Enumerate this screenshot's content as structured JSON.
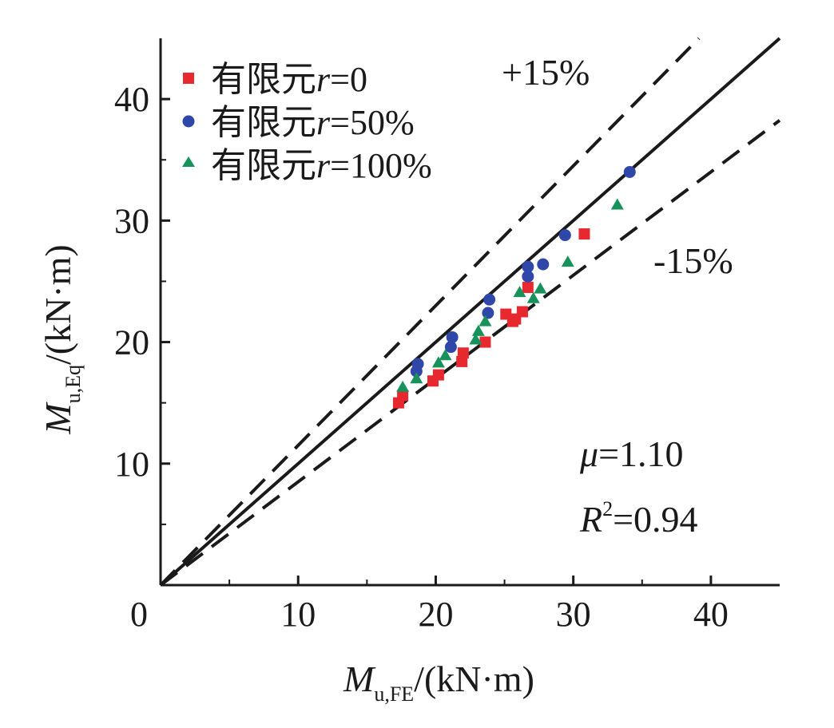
{
  "chart_data": {
    "type": "scatter",
    "xlabel": {
      "symbol": "M",
      "subscript": "u,FE",
      "unit": "/(kN·m)"
    },
    "ylabel": {
      "symbol": "M",
      "subscript": "u,Eq",
      "unit": "/(kN·m)"
    },
    "xlim": [
      0,
      45
    ],
    "ylim": [
      0,
      45
    ],
    "x_ticks": [
      0,
      10,
      20,
      30,
      40
    ],
    "y_ticks": [
      10,
      20,
      30,
      40
    ],
    "grid": false,
    "legend_position": "top-left",
    "reference_lines": [
      {
        "label": "",
        "slope": 1.0,
        "style": "solid"
      },
      {
        "label": "+15%",
        "slope": 1.15,
        "style": "dashed"
      },
      {
        "label": "-15%",
        "slope": 0.85,
        "style": "dashed"
      }
    ],
    "series": [
      {
        "name": "有限元r=0",
        "name_prefix": "有限元",
        "name_var": "r",
        "name_value": "=0",
        "marker": "square",
        "color": "#e8282f",
        "points": [
          [
            17.3,
            15.0
          ],
          [
            17.6,
            15.6
          ],
          [
            19.8,
            16.8
          ],
          [
            20.2,
            17.3
          ],
          [
            21.9,
            18.4
          ],
          [
            22.0,
            19.1
          ],
          [
            23.6,
            20.0
          ],
          [
            25.1,
            22.3
          ],
          [
            25.6,
            21.7
          ],
          [
            25.8,
            21.9
          ],
          [
            26.3,
            22.5
          ],
          [
            26.7,
            24.5
          ],
          [
            30.8,
            28.9
          ]
        ]
      },
      {
        "name": "有限元r=50%",
        "name_prefix": "有限元",
        "name_var": "r",
        "name_value": "=50%",
        "marker": "circle",
        "color": "#2e47a8",
        "points": [
          [
            18.6,
            17.6
          ],
          [
            18.7,
            18.2
          ],
          [
            21.1,
            19.6
          ],
          [
            21.2,
            20.4
          ],
          [
            23.8,
            22.4
          ],
          [
            23.9,
            23.5
          ],
          [
            26.7,
            25.4
          ],
          [
            26.7,
            26.2
          ],
          [
            27.8,
            26.4
          ],
          [
            29.4,
            28.8
          ],
          [
            34.1,
            34.0
          ]
        ]
      },
      {
        "name": "有限元r=100%",
        "name_prefix": "有限元",
        "name_var": "r",
        "name_value": "=100%",
        "marker": "triangle",
        "color": "#16925a",
        "points": [
          [
            17.6,
            16.3
          ],
          [
            18.6,
            17.0
          ],
          [
            20.2,
            18.3
          ],
          [
            20.7,
            18.9
          ],
          [
            22.9,
            20.2
          ],
          [
            23.1,
            20.9
          ],
          [
            23.6,
            21.7
          ],
          [
            26.1,
            24.1
          ],
          [
            27.1,
            23.6
          ],
          [
            27.6,
            24.4
          ],
          [
            29.6,
            26.6
          ],
          [
            33.2,
            31.3
          ]
        ]
      }
    ],
    "annotations": {
      "plus15": "+15%",
      "minus15": "-15%",
      "mu": {
        "symbol": "μ",
        "value": "=1.10"
      },
      "r2": {
        "symbol": "R",
        "sup": "2",
        "value": "=0.94"
      }
    },
    "origin_label": "0"
  }
}
